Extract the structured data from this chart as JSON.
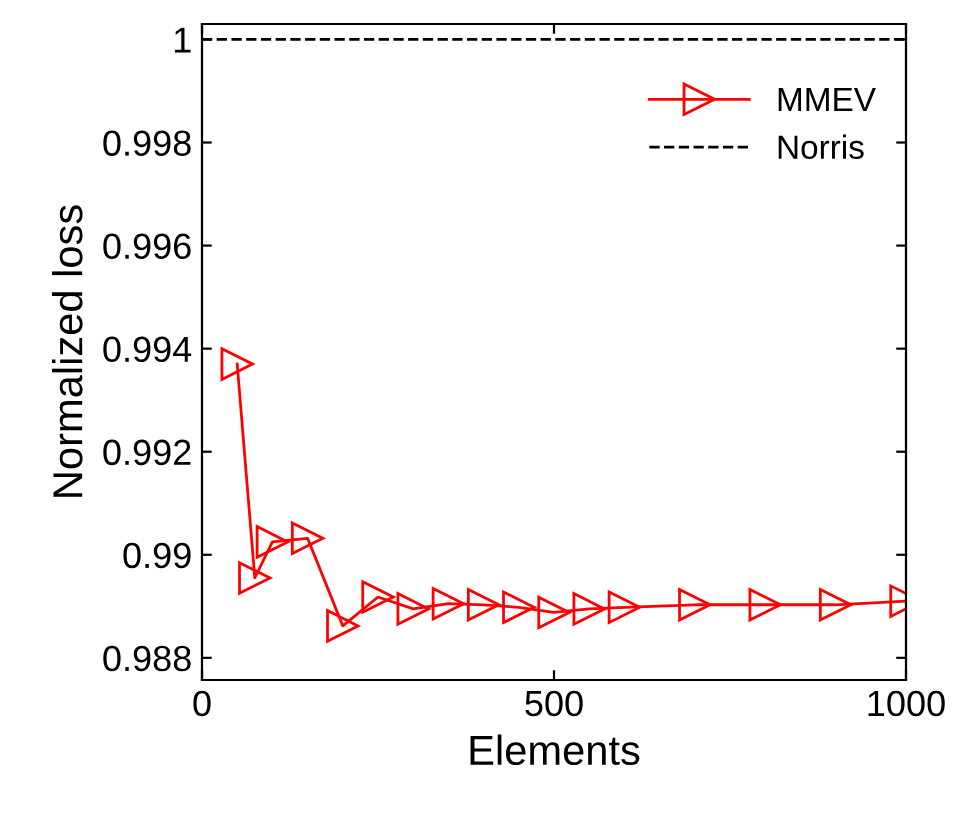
{
  "chart_data": {
    "type": "line",
    "xlabel": "Elements",
    "ylabel": "Normalized loss",
    "x": [
      50,
      75,
      100,
      150,
      200,
      250,
      300,
      350,
      400,
      450,
      500,
      550,
      600,
      700,
      800,
      900,
      1000
    ],
    "series": [
      {
        "name": "MMEV",
        "color": "#ff0000",
        "marker": "triangle",
        "line_style": "solid",
        "values": [
          0.9937,
          0.98955,
          0.99025,
          0.99032,
          0.98862,
          0.98918,
          0.98895,
          0.98905,
          0.98903,
          0.98898,
          0.98888,
          0.98895,
          0.98898,
          0.98903,
          0.98903,
          0.98903,
          0.9891
        ]
      },
      {
        "name": "Norris",
        "color": "#000000",
        "marker": "none",
        "line_style": "dashed",
        "x": [
          0,
          1000
        ],
        "values": [
          1,
          1
        ]
      }
    ],
    "xlim": [
      0,
      1000
    ],
    "xticks": [
      0,
      500,
      1000
    ],
    "ylim": [
      0.98757,
      1.0003
    ],
    "yticks": [
      0.988,
      0.99,
      0.992,
      0.994,
      0.996,
      0.998,
      1
    ],
    "grid": false,
    "legend": "top right"
  }
}
